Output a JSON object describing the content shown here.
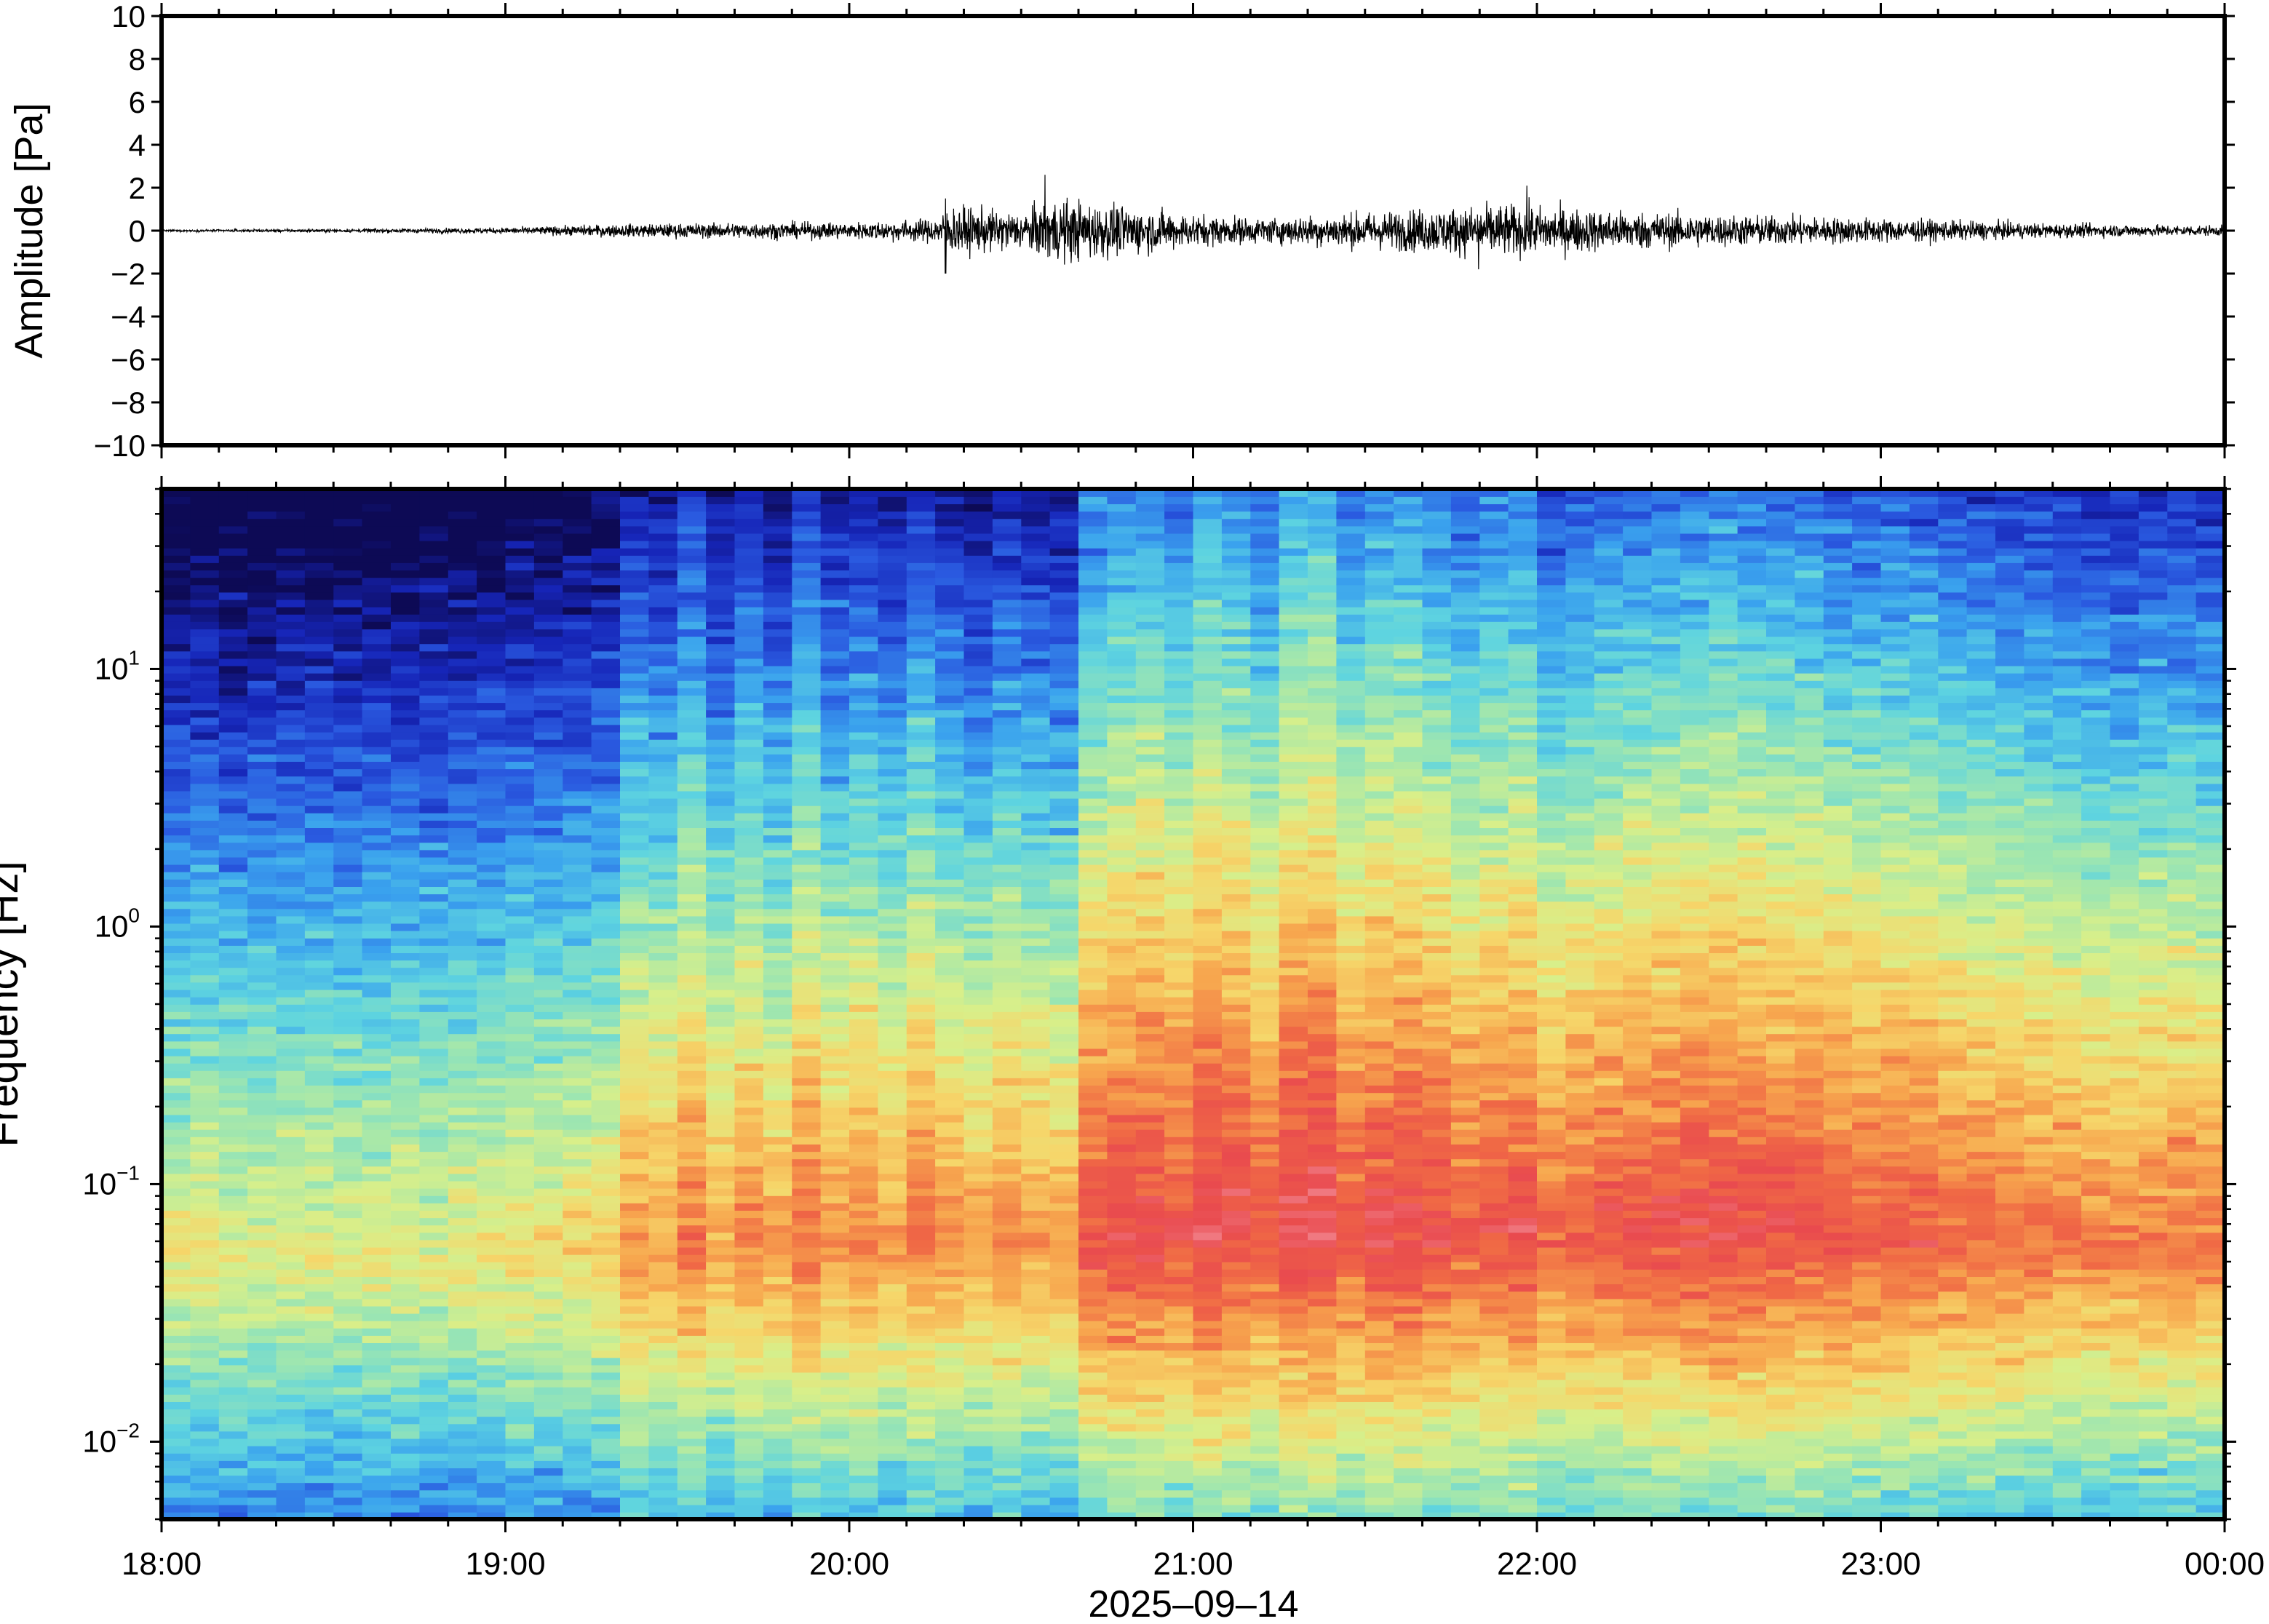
{
  "chart_data": [
    {
      "type": "line",
      "ylabel": "Amplitude [Pa]",
      "ylim": [
        -10,
        10
      ],
      "yticks": [
        10,
        8,
        6,
        4,
        2,
        0,
        -2,
        -4,
        -6,
        -8,
        -10
      ],
      "ytick_labels": [
        "10",
        "8",
        "6",
        "4",
        "2",
        "0",
        "−2",
        "−4",
        "−6",
        "−8",
        "−10"
      ],
      "xlim": [
        "2025-09-14 18:00",
        "2025-09-15 00:00"
      ],
      "series": [
        {
          "envelope_times_h": [
            18.0,
            18.5,
            19.0,
            19.3,
            19.7,
            20.0,
            20.25,
            20.3,
            20.5,
            20.6,
            20.8,
            21.0,
            21.2,
            21.5,
            21.8,
            21.9,
            22.2,
            22.5,
            23.0,
            23.5,
            24.0
          ],
          "envelope_amplitude_pa": [
            0.05,
            0.08,
            0.15,
            0.3,
            0.4,
            0.4,
            0.6,
            1.2,
            0.9,
            1.6,
            1.2,
            0.8,
            0.6,
            0.9,
            1.2,
            1.3,
            1.0,
            0.8,
            0.6,
            0.35,
            0.25
          ],
          "peaks": [
            {
              "time_h": 20.28,
              "min": -2.0,
              "max": 1.5
            },
            {
              "time_h": 20.57,
              "max": 2.6
            },
            {
              "time_h": 21.83,
              "min": -1.8
            },
            {
              "time_h": 21.97,
              "max": 2.1
            }
          ]
        }
      ]
    },
    {
      "type": "heatmap",
      "ylabel": "Frequency [Hz]",
      "xlabel": "2025–09–14",
      "yscale": "log",
      "ylim": [
        0.005,
        50
      ],
      "yticks": [
        10,
        1,
        0.1,
        0.01
      ],
      "ytick_bases": [
        "10",
        "10",
        "10",
        "10"
      ],
      "ytick_exponents": [
        "1",
        "0",
        "−1",
        "−2"
      ],
      "xticks": [
        "18:00",
        "19:00",
        "20:00",
        "21:00",
        "22:00",
        "23:00",
        "00:00"
      ],
      "colormap": [
        "#0d0a55",
        "#1625b8",
        "#2a5ae0",
        "#3aa2ee",
        "#5ed4e0",
        "#9ee6b0",
        "#d8ef8a",
        "#f6d66a",
        "#f7a64e",
        "#f06a45",
        "#e94a4e",
        "#f07a82"
      ],
      "time_columns": 72,
      "column_energy": [
        0.06,
        0.1,
        0.04,
        0.05,
        0.03,
        0.05,
        0.04,
        0.05,
        0.06,
        0.04,
        0.08,
        0.1,
        0.14,
        0.12,
        0.16,
        0.2,
        0.45,
        0.4,
        0.55,
        0.38,
        0.5,
        0.4,
        0.58,
        0.42,
        0.5,
        0.4,
        0.55,
        0.45,
        0.38,
        0.48,
        0.42,
        0.4,
        0.72,
        0.78,
        0.8,
        0.74,
        0.85,
        0.8,
        0.7,
        0.86,
        0.9,
        0.72,
        0.8,
        0.82,
        0.76,
        0.68,
        0.74,
        0.76,
        0.62,
        0.66,
        0.7,
        0.72,
        0.74,
        0.76,
        0.78,
        0.76,
        0.74,
        0.74,
        0.7,
        0.68,
        0.66,
        0.66,
        0.62,
        0.6,
        0.58,
        0.56,
        0.54,
        0.52,
        0.5,
        0.52,
        0.54,
        0.52
      ]
    }
  ]
}
